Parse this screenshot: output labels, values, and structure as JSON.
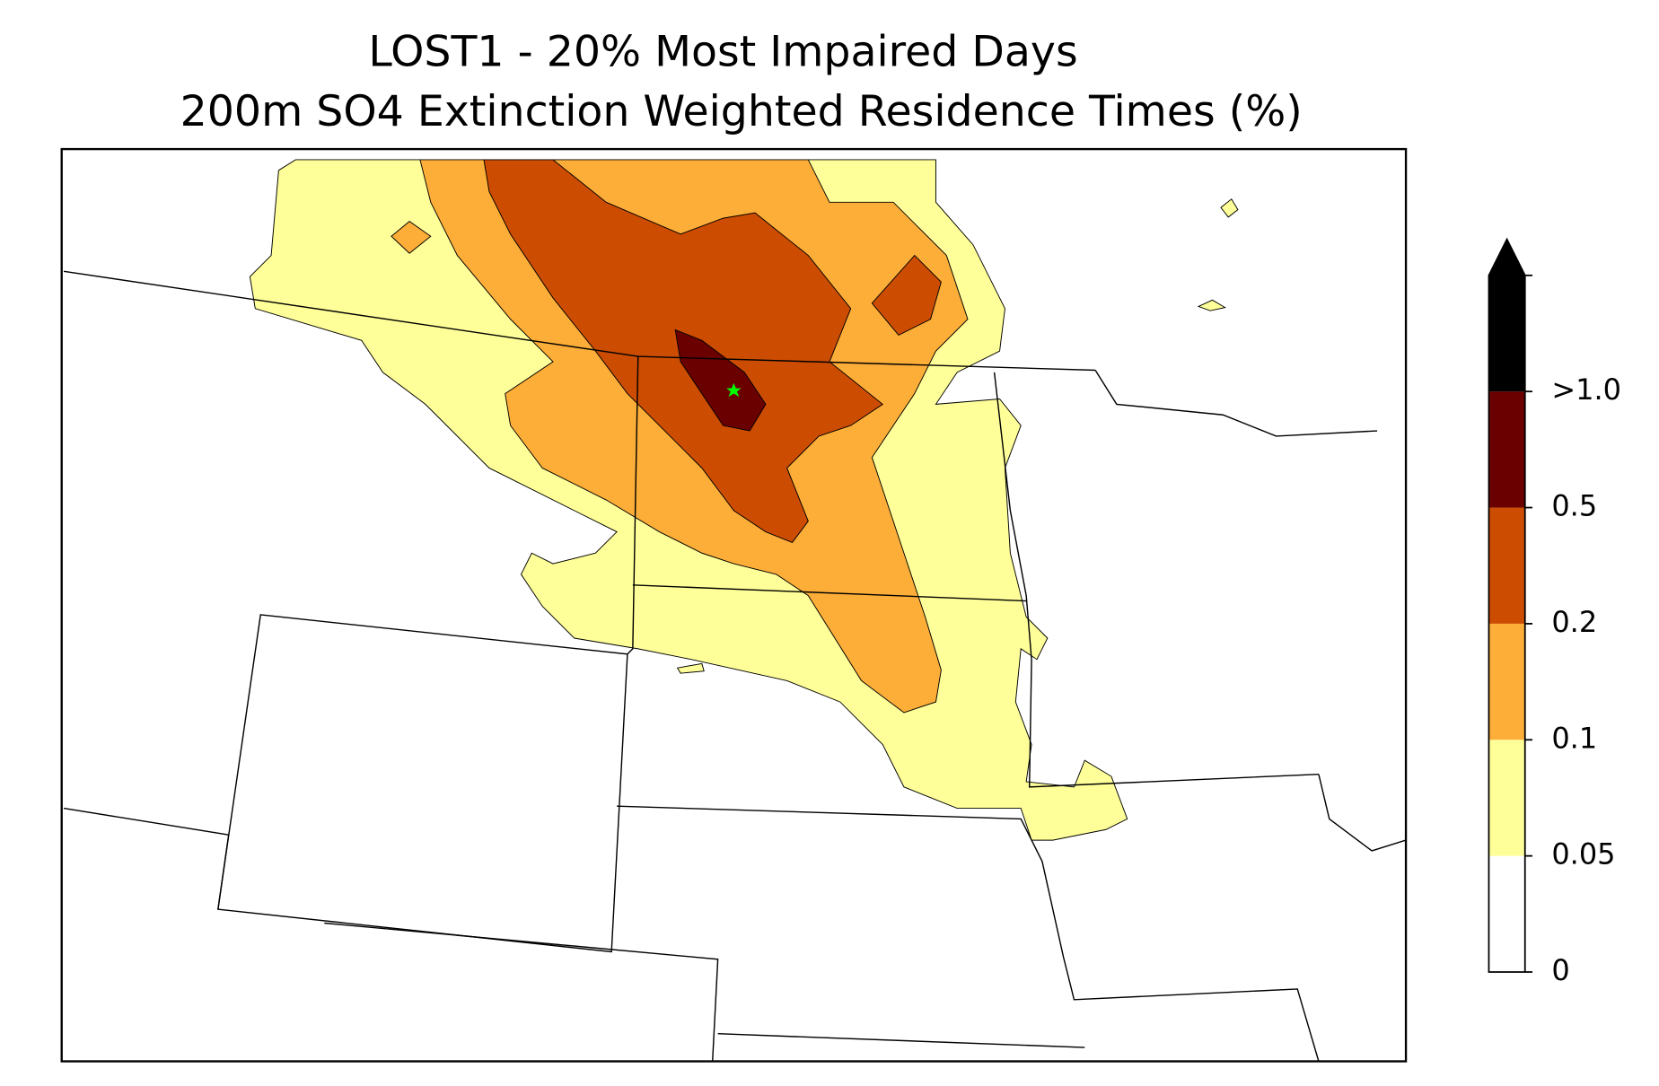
{
  "title": [
    "LOST1 - 20% Most Impaired Days",
    "200m SO4 Extinction Weighted Residence Times (%)"
  ],
  "colorbar": {
    "ticks": [
      0,
      0.05,
      0.1,
      0.2,
      0.5,
      {
        "value": 1,
        "label": ">1.0"
      }
    ],
    "colors": [
      "#ffffff",
      "#ffff99",
      "#fdae38",
      "#cc4c02",
      "#6b0000",
      "#000000"
    ]
  }
}
